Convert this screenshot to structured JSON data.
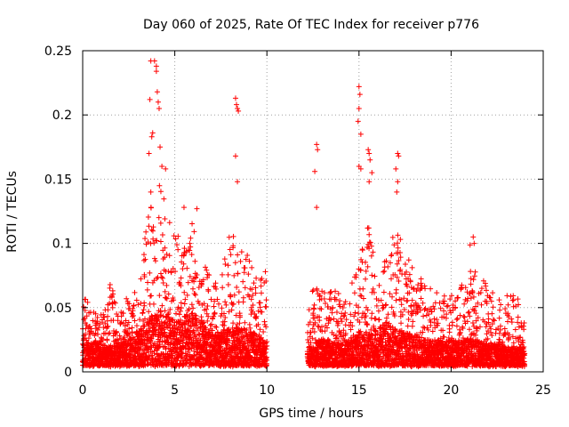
{
  "chart_data": {
    "type": "scatter",
    "title": "Day 060 of 2025, Rate Of TEC Index for receiver p776",
    "xlabel": "GPS time / hours",
    "ylabel": "ROTI / TECUs",
    "xlim": [
      0,
      25
    ],
    "ylim": [
      0,
      0.25
    ],
    "xticks": [
      0,
      5,
      10,
      15,
      20,
      25
    ],
    "xtick_labels": [
      "0",
      "5",
      "10",
      "15",
      "20",
      "25"
    ],
    "yticks": [
      0,
      0.05,
      0.1,
      0.15,
      0.2,
      0.25
    ],
    "ytick_labels": [
      "0",
      "0.05",
      "0.1",
      "0.15",
      "0.2",
      "0.25"
    ],
    "grid": true,
    "marker": "+",
    "color": "#ff0000",
    "data_gap_hours": [
      10.0,
      12.2
    ],
    "series": [
      {
        "name": "ROTI",
        "envelope": {
          "x": [
            0,
            0.5,
            1,
            1.5,
            2,
            2.5,
            3,
            3.5,
            4,
            4.5,
            5,
            5.5,
            6,
            6.5,
            7,
            7.5,
            8,
            8.5,
            9,
            9.5,
            10,
            12.2,
            12.5,
            13,
            13.5,
            14,
            14.5,
            15,
            15.5,
            16,
            16.5,
            17,
            17.5,
            18,
            18.5,
            19,
            19.5,
            20,
            20.5,
            21,
            21.5,
            22,
            22.5,
            23,
            23.5,
            24
          ],
          "base": [
            0.018,
            0.02,
            0.018,
            0.015,
            0.016,
            0.022,
            0.028,
            0.035,
            0.045,
            0.04,
            0.035,
            0.04,
            0.042,
            0.035,
            0.025,
            0.028,
            0.03,
            0.032,
            0.028,
            0.025,
            0.02,
            0.016,
            0.018,
            0.022,
            0.02,
            0.018,
            0.02,
            0.025,
            0.025,
            0.03,
            0.035,
            0.03,
            0.028,
            0.025,
            0.022,
            0.02,
            0.02,
            0.022,
            0.02,
            0.022,
            0.02,
            0.018,
            0.018,
            0.016,
            0.016,
            0.015
          ],
          "upper": [
            0.06,
            0.055,
            0.045,
            0.07,
            0.05,
            0.06,
            0.07,
            0.12,
            0.16,
            0.13,
            0.11,
            0.1,
            0.12,
            0.09,
            0.07,
            0.08,
            0.11,
            0.1,
            0.09,
            0.08,
            0.08,
            0.04,
            0.07,
            0.065,
            0.07,
            0.06,
            0.06,
            0.1,
            0.12,
            0.08,
            0.09,
            0.13,
            0.09,
            0.085,
            0.07,
            0.065,
            0.06,
            0.06,
            0.065,
            0.1,
            0.08,
            0.065,
            0.06,
            0.06,
            0.065,
            0.04
          ]
        },
        "peaks": [
          {
            "x": 3.7,
            "y": 0.242
          },
          {
            "x": 3.9,
            "y": 0.242
          },
          {
            "x": 4.0,
            "y": 0.238
          },
          {
            "x": 4.0,
            "y": 0.234
          },
          {
            "x": 4.05,
            "y": 0.218
          },
          {
            "x": 3.65,
            "y": 0.212
          },
          {
            "x": 4.1,
            "y": 0.21
          },
          {
            "x": 4.15,
            "y": 0.205
          },
          {
            "x": 3.8,
            "y": 0.186
          },
          {
            "x": 3.75,
            "y": 0.183
          },
          {
            "x": 4.2,
            "y": 0.175
          },
          {
            "x": 3.6,
            "y": 0.17
          },
          {
            "x": 4.3,
            "y": 0.16
          },
          {
            "x": 4.5,
            "y": 0.158
          },
          {
            "x": 3.7,
            "y": 0.14
          },
          {
            "x": 5.5,
            "y": 0.128
          },
          {
            "x": 6.2,
            "y": 0.127
          },
          {
            "x": 8.3,
            "y": 0.213
          },
          {
            "x": 8.35,
            "y": 0.208
          },
          {
            "x": 8.4,
            "y": 0.205
          },
          {
            "x": 8.45,
            "y": 0.203
          },
          {
            "x": 8.3,
            "y": 0.168
          },
          {
            "x": 8.4,
            "y": 0.148
          },
          {
            "x": 12.7,
            "y": 0.177
          },
          {
            "x": 12.75,
            "y": 0.173
          },
          {
            "x": 12.6,
            "y": 0.156
          },
          {
            "x": 12.7,
            "y": 0.128
          },
          {
            "x": 15.0,
            "y": 0.222
          },
          {
            "x": 15.05,
            "y": 0.216
          },
          {
            "x": 15.0,
            "y": 0.205
          },
          {
            "x": 14.95,
            "y": 0.195
          },
          {
            "x": 15.1,
            "y": 0.185
          },
          {
            "x": 15.5,
            "y": 0.173
          },
          {
            "x": 15.55,
            "y": 0.17
          },
          {
            "x": 15.6,
            "y": 0.165
          },
          {
            "x": 15.0,
            "y": 0.16
          },
          {
            "x": 15.1,
            "y": 0.158
          },
          {
            "x": 15.7,
            "y": 0.155
          },
          {
            "x": 15.55,
            "y": 0.148
          },
          {
            "x": 17.1,
            "y": 0.17
          },
          {
            "x": 17.15,
            "y": 0.168
          },
          {
            "x": 17.0,
            "y": 0.158
          },
          {
            "x": 17.1,
            "y": 0.148
          },
          {
            "x": 17.05,
            "y": 0.14
          },
          {
            "x": 21.2,
            "y": 0.105
          },
          {
            "x": 21.25,
            "y": 0.1
          }
        ]
      }
    ]
  }
}
